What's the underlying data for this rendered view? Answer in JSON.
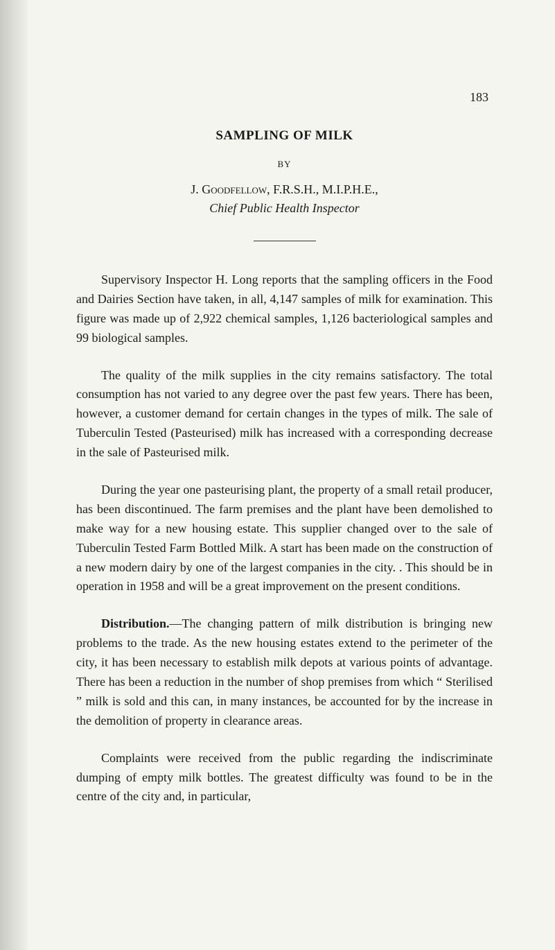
{
  "page_number": "183",
  "title": "SAMPLING OF MILK",
  "byline_small": "BY",
  "author": "J. Goodfellow, F.R.S.H., M.I.P.H.E.,",
  "author_title": "Chief Public Health Inspector",
  "paragraphs": {
    "p1": "Supervisory Inspector H. Long reports that the sampling officers in the Food and Dairies Section have taken, in all, 4,147 samples of milk for examination. This figure was made up of 2,922 chemical samples, 1,126 bacteriological samples and 99 biological samples.",
    "p2": "The quality of the milk supplies in the city remains satisfactory. The total consumption has not varied to any degree over the past few years. There has been, however, a customer demand for certain changes in the types of milk. The sale of Tuberculin Tested (Pasteurised) milk has increased with a corresponding decrease in the sale of Pasteurised milk.",
    "p3": "During the year one pasteurising plant, the property of a small retail producer, has been discontinued. The farm premises and the plant have been demolished to make way for a new housing estate. This supplier changed over to the sale of Tuberculin Tested Farm Bottled Milk. A start has been made on the construction of a new modern dairy by one of the largest companies in the city. . This should be in operation in 1958 and will be a great improvement on the present conditions.",
    "p4_runin": "Distribution.",
    "p4_rest": "—The changing pattern of milk distribution is bringing new problems to the trade. As the new housing estates extend to the perimeter of the city, it has been necessary to establish milk depots at various points of advantage. There has been a reduction in the number of shop premises from which “ Sterilised ” milk is sold and this can, in many instances, be accounted for by the increase in the demolition of property in clearance areas.",
    "p5": "Complaints were received from the public regarding the in­discriminate dumping of empty milk bottles. The greatest difficulty was found to be in the centre of the city and, in particular,"
  },
  "colors": {
    "background": "#f5f5f0",
    "text": "#1a1a1a",
    "rule": "#333333"
  }
}
